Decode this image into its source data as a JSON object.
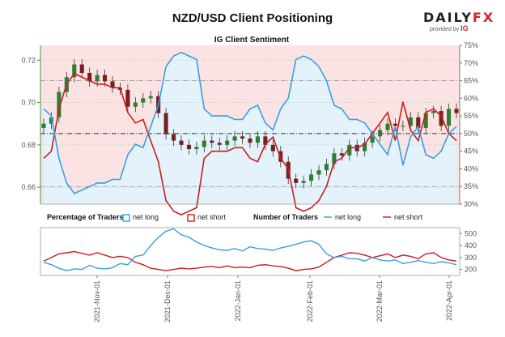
{
  "title": "NZD/USD Client Positioning",
  "logo": {
    "word_a": "DAILY",
    "word_b": "FX",
    "provided_by": "provided by",
    "ig": "IG"
  },
  "chart_data": [
    {
      "type": "line",
      "title": "IG Client Sentiment",
      "series": [
        {
          "name": "NZD/USD price",
          "kind": "candlestick",
          "axis": "left",
          "values": [
            0.69,
            0.693,
            0.705,
            0.712,
            0.718,
            0.714,
            0.71,
            0.713,
            0.71,
            0.707,
            0.706,
            0.698,
            0.7,
            0.702,
            0.703,
            0.695,
            0.685,
            0.682,
            0.68,
            0.678,
            0.679,
            0.682,
            0.681,
            0.68,
            0.682,
            0.684,
            0.683,
            0.681,
            0.684,
            0.68,
            0.677,
            0.672,
            0.664,
            0.662,
            0.663,
            0.666,
            0.668,
            0.671,
            0.676,
            0.675,
            0.68,
            0.677,
            0.681,
            0.684,
            0.687,
            0.69,
            0.689,
            0.689,
            0.693,
            0.688,
            0.695,
            0.696,
            0.689,
            0.697,
            0.695
          ]
        },
        {
          "name": "net long %",
          "axis": "right",
          "values": [
            57,
            55,
            43,
            36,
            33,
            34,
            35,
            36,
            36,
            37,
            37,
            44,
            47,
            46,
            52,
            58,
            69,
            72,
            73,
            72,
            71,
            57,
            55,
            55,
            55,
            54,
            54,
            57,
            58,
            53,
            51,
            57,
            60,
            71,
            72,
            71,
            69,
            65,
            58,
            57,
            54,
            54,
            53,
            50,
            47,
            44,
            52,
            41,
            49,
            52,
            44,
            43,
            45,
            50,
            52
          ]
        },
        {
          "name": "net short %",
          "axis": "right",
          "values": [
            43,
            45,
            57,
            64,
            67,
            66,
            65,
            64,
            64,
            63,
            63,
            56,
            53,
            54,
            48,
            42,
            31,
            28,
            27,
            28,
            29,
            43,
            45,
            45,
            45,
            46,
            46,
            43,
            42,
            47,
            49,
            43,
            40,
            29,
            28,
            29,
            31,
            35,
            42,
            43,
            46,
            46,
            47,
            50,
            53,
            56,
            48,
            59,
            51,
            48,
            56,
            57,
            55,
            50,
            48
          ]
        }
      ],
      "ylim_left": [
        0.652,
        0.727
      ],
      "yticks_left": [
        "0.66",
        "0.68",
        "0.70",
        "0.72"
      ],
      "ylim_right": [
        30,
        75
      ],
      "yticks_right": [
        "30%",
        "35%",
        "40%",
        "45%",
        "50%",
        "55%",
        "60%",
        "65%",
        "70%",
        "75%"
      ],
      "reference_lines_right": [
        35,
        50,
        65
      ],
      "colors": {
        "long_fill": "#e3f2fb",
        "short_fill": "#fbe3e3",
        "long_line": "#3a9ee4",
        "short_line": "#cc1c1c",
        "up_candle": "#2f7d32",
        "down_candle": "#7b1e1e",
        "left_axis": "#3d9a3d"
      }
    },
    {
      "type": "line",
      "series": [
        {
          "name": "net long",
          "values": [
            260,
            240,
            210,
            190,
            205,
            200,
            235,
            210,
            205,
            215,
            250,
            240,
            310,
            320,
            400,
            470,
            520,
            540,
            490,
            470,
            430,
            400,
            380,
            365,
            360,
            375,
            355,
            390,
            375,
            370,
            360,
            380,
            395,
            410,
            430,
            440,
            410,
            330,
            300,
            310,
            290,
            290,
            270,
            300,
            280,
            270,
            280,
            250,
            260,
            275,
            260,
            250,
            265,
            255,
            240
          ]
        },
        {
          "name": "net short",
          "values": [
            270,
            300,
            330,
            340,
            350,
            335,
            320,
            340,
            320,
            300,
            310,
            300,
            260,
            240,
            210,
            200,
            190,
            200,
            210,
            205,
            210,
            220,
            225,
            215,
            230,
            215,
            220,
            215,
            235,
            240,
            230,
            225,
            210,
            190,
            200,
            205,
            220,
            260,
            300,
            320,
            340,
            335,
            320,
            300,
            315,
            330,
            300,
            320,
            310,
            290,
            330,
            340,
            300,
            280,
            270
          ]
        }
      ],
      "ylim": [
        150,
        550
      ],
      "yticks": [
        "200",
        "300",
        "400",
        "500"
      ]
    }
  ],
  "x_labels": [
    "2021-Nov-01",
    "2021-Dec-01",
    "2022-Jan-01",
    "2022-Feb-01",
    "2022-Mar-01",
    "2022-Apr-01"
  ],
  "legend": {
    "pct_title": "Percentage of Traders",
    "pct_long": "net long",
    "pct_short": "net short",
    "num_title": "Number of Traders",
    "num_long": "net long",
    "num_short": "net short"
  }
}
